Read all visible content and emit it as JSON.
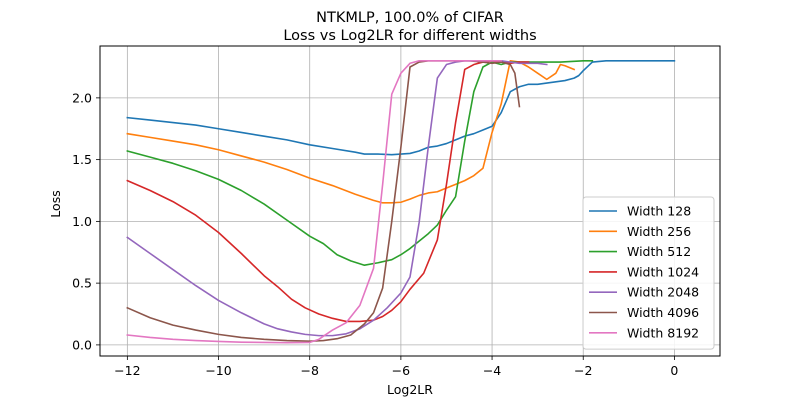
{
  "chart_data": {
    "type": "line",
    "title": "NTKMLP, 100.0% of CIFAR",
    "subtitle": "Loss vs Log2LR for different widths",
    "xlabel": "Log2LR",
    "ylabel": "Loss",
    "xlim": [
      -12.6,
      1.0
    ],
    "ylim": [
      -0.09,
      2.42
    ],
    "xticks": [
      -12,
      -10,
      -8,
      -6,
      -4,
      -2,
      0
    ],
    "xtick_labels": [
      "−12",
      "−10",
      "−8",
      "−6",
      "−4",
      "−2",
      "0"
    ],
    "yticks": [
      0.0,
      0.5,
      1.0,
      1.5,
      2.0
    ],
    "ytick_labels": [
      "0.0",
      "0.5",
      "1.0",
      "1.5",
      "2.0"
    ],
    "grid": true,
    "legend_position": "lower-right",
    "series": [
      {
        "name": "Width 128",
        "color": "#1f77b4",
        "points": [
          [
            -12,
            1.84
          ],
          [
            -11.5,
            1.82
          ],
          [
            -11,
            1.8
          ],
          [
            -10.5,
            1.78
          ],
          [
            -10,
            1.75
          ],
          [
            -9.5,
            1.72
          ],
          [
            -9,
            1.69
          ],
          [
            -8.5,
            1.66
          ],
          [
            -8,
            1.62
          ],
          [
            -7.5,
            1.59
          ],
          [
            -7,
            1.56
          ],
          [
            -6.8,
            1.545
          ],
          [
            -6.5,
            1.545
          ],
          [
            -6.2,
            1.54
          ],
          [
            -6,
            1.545
          ],
          [
            -5.8,
            1.55
          ],
          [
            -5.6,
            1.57
          ],
          [
            -5.4,
            1.6
          ],
          [
            -5.2,
            1.61
          ],
          [
            -5,
            1.63
          ],
          [
            -4.8,
            1.66
          ],
          [
            -4.6,
            1.69
          ],
          [
            -4.4,
            1.71
          ],
          [
            -4.2,
            1.74
          ],
          [
            -4,
            1.77
          ],
          [
            -3.8,
            1.88
          ],
          [
            -3.6,
            2.05
          ],
          [
            -3.4,
            2.09
          ],
          [
            -3.2,
            2.11
          ],
          [
            -3,
            2.11
          ],
          [
            -2.8,
            2.12
          ],
          [
            -2.6,
            2.13
          ],
          [
            -2.4,
            2.14
          ],
          [
            -2.2,
            2.16
          ],
          [
            -2.1,
            2.18
          ],
          [
            -2,
            2.22
          ],
          [
            -1.8,
            2.29
          ],
          [
            -1.5,
            2.3
          ],
          [
            -1,
            2.3
          ],
          [
            -0.5,
            2.3
          ],
          [
            0,
            2.3
          ]
        ]
      },
      {
        "name": "Width 256",
        "color": "#ff7f0e",
        "points": [
          [
            -12,
            1.71
          ],
          [
            -11.5,
            1.68
          ],
          [
            -11,
            1.65
          ],
          [
            -10.5,
            1.62
          ],
          [
            -10,
            1.58
          ],
          [
            -9.5,
            1.53
          ],
          [
            -9,
            1.48
          ],
          [
            -8.5,
            1.42
          ],
          [
            -8,
            1.35
          ],
          [
            -7.5,
            1.29
          ],
          [
            -7,
            1.22
          ],
          [
            -6.6,
            1.17
          ],
          [
            -6.4,
            1.15
          ],
          [
            -6.2,
            1.15
          ],
          [
            -6,
            1.155
          ],
          [
            -5.8,
            1.18
          ],
          [
            -5.6,
            1.21
          ],
          [
            -5.4,
            1.23
          ],
          [
            -5.2,
            1.24
          ],
          [
            -5,
            1.27
          ],
          [
            -4.8,
            1.3
          ],
          [
            -4.6,
            1.33
          ],
          [
            -4.4,
            1.37
          ],
          [
            -4.2,
            1.43
          ],
          [
            -4,
            1.72
          ],
          [
            -3.8,
            1.95
          ],
          [
            -3.6,
            2.3
          ],
          [
            -3.4,
            2.29
          ],
          [
            -3.2,
            2.25
          ],
          [
            -3,
            2.2
          ],
          [
            -2.8,
            2.15
          ],
          [
            -2.6,
            2.2
          ],
          [
            -2.5,
            2.27
          ],
          [
            -2.4,
            2.26
          ],
          [
            -2.2,
            2.23
          ]
        ]
      },
      {
        "name": "Width 512",
        "color": "#2ca02c",
        "points": [
          [
            -12,
            1.57
          ],
          [
            -11.5,
            1.52
          ],
          [
            -11,
            1.47
          ],
          [
            -10.5,
            1.41
          ],
          [
            -10,
            1.34
          ],
          [
            -9.5,
            1.25
          ],
          [
            -9,
            1.14
          ],
          [
            -8.5,
            1.01
          ],
          [
            -8,
            0.88
          ],
          [
            -7.7,
            0.82
          ],
          [
            -7.4,
            0.73
          ],
          [
            -7.1,
            0.68
          ],
          [
            -6.8,
            0.645
          ],
          [
            -6.5,
            0.665
          ],
          [
            -6.2,
            0.69
          ],
          [
            -6,
            0.73
          ],
          [
            -5.8,
            0.78
          ],
          [
            -5.6,
            0.84
          ],
          [
            -5.4,
            0.9
          ],
          [
            -5.2,
            0.97
          ],
          [
            -5,
            1.09
          ],
          [
            -4.8,
            1.2
          ],
          [
            -4.6,
            1.65
          ],
          [
            -4.4,
            2.05
          ],
          [
            -4.2,
            2.25
          ],
          [
            -4,
            2.29
          ],
          [
            -3.8,
            2.27
          ],
          [
            -3.6,
            2.29
          ],
          [
            -3.4,
            2.29
          ],
          [
            -3.2,
            2.29
          ],
          [
            -3,
            2.29
          ],
          [
            -2.5,
            2.29
          ],
          [
            -2,
            2.3
          ],
          [
            -1.8,
            2.3
          ]
        ]
      },
      {
        "name": "Width 1024",
        "color": "#d62728",
        "points": [
          [
            -12,
            1.33
          ],
          [
            -11.5,
            1.25
          ],
          [
            -11,
            1.16
          ],
          [
            -10.5,
            1.05
          ],
          [
            -10,
            0.91
          ],
          [
            -9.5,
            0.74
          ],
          [
            -9,
            0.56
          ],
          [
            -8.7,
            0.47
          ],
          [
            -8.4,
            0.37
          ],
          [
            -8.1,
            0.3
          ],
          [
            -7.8,
            0.25
          ],
          [
            -7.5,
            0.215
          ],
          [
            -7.2,
            0.19
          ],
          [
            -6.9,
            0.19
          ],
          [
            -6.6,
            0.2
          ],
          [
            -6.4,
            0.23
          ],
          [
            -6.2,
            0.28
          ],
          [
            -6,
            0.35
          ],
          [
            -5.8,
            0.45
          ],
          [
            -5.5,
            0.58
          ],
          [
            -5.2,
            0.85
          ],
          [
            -5,
            1.3
          ],
          [
            -4.8,
            1.8
          ],
          [
            -4.6,
            2.23
          ],
          [
            -4.4,
            2.27
          ],
          [
            -4.2,
            2.29
          ],
          [
            -4,
            2.3
          ],
          [
            -3.8,
            2.29
          ],
          [
            -3.6,
            2.28
          ],
          [
            -3.4,
            2.29
          ],
          [
            -3.2,
            2.29
          ]
        ]
      },
      {
        "name": "Width 2048",
        "color": "#9467bd",
        "points": [
          [
            -12,
            0.87
          ],
          [
            -11.5,
            0.74
          ],
          [
            -11,
            0.61
          ],
          [
            -10.5,
            0.48
          ],
          [
            -10,
            0.36
          ],
          [
            -9.5,
            0.26
          ],
          [
            -9,
            0.17
          ],
          [
            -8.7,
            0.13
          ],
          [
            -8.4,
            0.105
          ],
          [
            -8.1,
            0.085
          ],
          [
            -7.8,
            0.075
          ],
          [
            -7.5,
            0.075
          ],
          [
            -7.2,
            0.09
          ],
          [
            -6.9,
            0.13
          ],
          [
            -6.6,
            0.2
          ],
          [
            -6.3,
            0.3
          ],
          [
            -6,
            0.42
          ],
          [
            -5.8,
            0.55
          ],
          [
            -5.6,
            0.99
          ],
          [
            -5.4,
            1.6
          ],
          [
            -5.2,
            2.16
          ],
          [
            -5,
            2.27
          ],
          [
            -4.8,
            2.29
          ],
          [
            -4.6,
            2.3
          ],
          [
            -4.4,
            2.3
          ],
          [
            -4.2,
            2.3
          ],
          [
            -4,
            2.3
          ],
          [
            -3.8,
            2.3
          ],
          [
            -3.6,
            2.29
          ],
          [
            -3.4,
            2.28
          ],
          [
            -3.2,
            2.28
          ],
          [
            -3,
            2.28
          ],
          [
            -2.8,
            2.27
          ]
        ]
      },
      {
        "name": "Width 4096",
        "color": "#8c564b",
        "points": [
          [
            -12,
            0.3
          ],
          [
            -11.5,
            0.22
          ],
          [
            -11,
            0.16
          ],
          [
            -10.5,
            0.12
          ],
          [
            -10,
            0.085
          ],
          [
            -9.5,
            0.06
          ],
          [
            -9,
            0.045
          ],
          [
            -8.5,
            0.035
          ],
          [
            -8,
            0.03
          ],
          [
            -7.7,
            0.035
          ],
          [
            -7.4,
            0.05
          ],
          [
            -7.1,
            0.08
          ],
          [
            -6.8,
            0.17
          ],
          [
            -6.6,
            0.26
          ],
          [
            -6.4,
            0.46
          ],
          [
            -6.2,
            1.0
          ],
          [
            -6,
            1.6
          ],
          [
            -5.8,
            2.25
          ],
          [
            -5.6,
            2.29
          ],
          [
            -5.4,
            2.3
          ],
          [
            -5.2,
            2.3
          ],
          [
            -5,
            2.3
          ],
          [
            -4.8,
            2.3
          ],
          [
            -4.5,
            2.3
          ],
          [
            -4.2,
            2.29
          ],
          [
            -4,
            2.28
          ],
          [
            -3.8,
            2.29
          ],
          [
            -3.6,
            2.27
          ],
          [
            -3.5,
            2.2
          ],
          [
            -3.4,
            1.93
          ]
        ]
      },
      {
        "name": "Width 8192",
        "color": "#e377c2",
        "points": [
          [
            -12,
            0.08
          ],
          [
            -11.5,
            0.06
          ],
          [
            -11,
            0.045
          ],
          [
            -10.5,
            0.035
          ],
          [
            -10,
            0.028
          ],
          [
            -9.5,
            0.022
          ],
          [
            -9,
            0.02
          ],
          [
            -8.5,
            0.018
          ],
          [
            -8,
            0.02
          ],
          [
            -7.8,
            0.045
          ],
          [
            -7.5,
            0.12
          ],
          [
            -7.2,
            0.18
          ],
          [
            -6.9,
            0.32
          ],
          [
            -6.6,
            0.62
          ],
          [
            -6.4,
            1.3
          ],
          [
            -6.2,
            2.03
          ],
          [
            -6,
            2.2
          ],
          [
            -5.8,
            2.28
          ],
          [
            -5.6,
            2.3
          ],
          [
            -5.4,
            2.3
          ],
          [
            -5.2,
            2.3
          ],
          [
            -5,
            2.3
          ],
          [
            -4.8,
            2.3
          ],
          [
            -4.6,
            2.3
          ],
          [
            -4.4,
            2.3
          ],
          [
            -4.2,
            2.3
          ],
          [
            -4,
            2.3
          ],
          [
            -3.8,
            2.3
          ]
        ]
      }
    ]
  }
}
